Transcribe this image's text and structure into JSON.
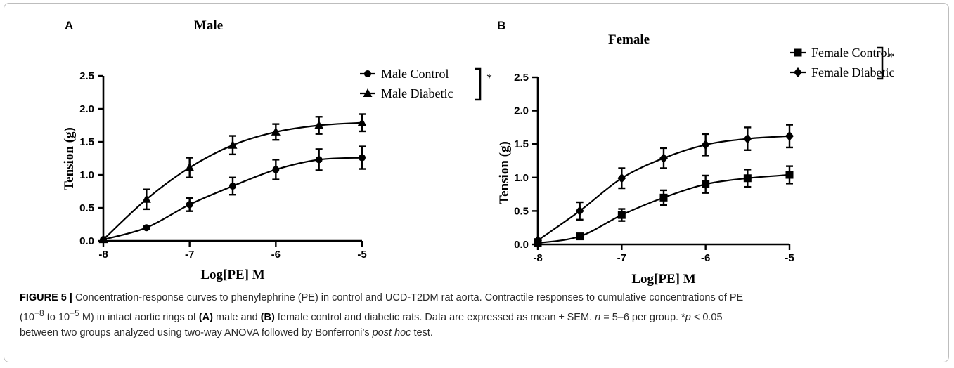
{
  "chart_data": [
    {
      "type": "line",
      "panel_letter": "A",
      "title": "Male",
      "xlabel": "Log[PE] M",
      "ylabel": "Tension (g)",
      "xlim": [
        -8,
        -5
      ],
      "ylim": [
        0,
        2.5
      ],
      "x_ticks": [
        "-8",
        "-7",
        "-6",
        "-5"
      ],
      "x_tick_values": [
        -8,
        -7,
        -6,
        -5
      ],
      "y_ticks": [
        "0.0",
        "0.5",
        "1.0",
        "1.5",
        "2.0",
        "2.5"
      ],
      "y_tick_values": [
        0,
        0.5,
        1.0,
        1.5,
        2.0,
        2.5
      ],
      "legend_position": "top-right",
      "significance_mark": "*",
      "x": [
        -8,
        -7.5,
        -7,
        -6.5,
        -6,
        -5.5,
        -5
      ],
      "series": [
        {
          "name": "Male Control",
          "marker": "circle",
          "values": [
            0.02,
            0.2,
            0.55,
            0.83,
            1.08,
            1.23,
            1.26
          ],
          "sem": [
            0.0,
            0.02,
            0.1,
            0.13,
            0.15,
            0.16,
            0.17
          ]
        },
        {
          "name": "Male Diabetic",
          "marker": "triangle",
          "values": [
            0.02,
            0.63,
            1.11,
            1.45,
            1.65,
            1.75,
            1.79
          ],
          "sem": [
            0.0,
            0.15,
            0.15,
            0.14,
            0.12,
            0.13,
            0.13
          ]
        }
      ]
    },
    {
      "type": "line",
      "panel_letter": "B",
      "title": "Female",
      "xlabel": "Log[PE] M",
      "ylabel": "Tension (g)",
      "xlim": [
        -8,
        -5
      ],
      "ylim": [
        0,
        2.5
      ],
      "x_ticks": [
        "-8",
        "-7",
        "-6",
        "-5"
      ],
      "x_tick_values": [
        -8,
        -7,
        -6,
        -5
      ],
      "y_ticks": [
        "0.0",
        "0.5",
        "1.0",
        "1.5",
        "2.0",
        "2.5"
      ],
      "y_tick_values": [
        0,
        0.5,
        1.0,
        1.5,
        2.0,
        2.5
      ],
      "legend_position": "top-right",
      "significance_mark": "*",
      "x": [
        -8,
        -7.5,
        -7,
        -6.5,
        -6,
        -5.5,
        -5
      ],
      "series": [
        {
          "name": "Female Control",
          "marker": "square",
          "values": [
            0.02,
            0.12,
            0.44,
            0.7,
            0.9,
            0.99,
            1.04
          ],
          "sem": [
            0.0,
            0.02,
            0.09,
            0.11,
            0.13,
            0.13,
            0.13
          ]
        },
        {
          "name": "Female Diabetic",
          "marker": "diamond",
          "values": [
            0.06,
            0.5,
            0.99,
            1.29,
            1.49,
            1.58,
            1.62
          ],
          "sem": [
            0.02,
            0.13,
            0.15,
            0.15,
            0.16,
            0.17,
            0.17
          ]
        }
      ]
    }
  ],
  "caption": {
    "figure_label": "FIGURE 5 |",
    "line1": " Concentration-response curves to phenylephrine (PE) in control and UCD-T2DM rat aorta. Contractile responses to cumulative concentrations of PE",
    "range_start": "(10",
    "exp1": "−8",
    "range_mid": " to 10",
    "exp2": "−5",
    "range_end": " M) in intact aortic rings of ",
    "label_a": "(A)",
    "male_text": " male and ",
    "label_b": "(B)",
    "female_text": " female control and diabetic rats. Data are expressed as mean ± SEM. ",
    "n_var": "n",
    "n_text": " = 5–6 per group. *",
    "p_var": "p",
    "p_text": " < 0.05",
    "line3": "between two groups analyzed using two-way ANOVA followed by Bonferroni’s ",
    "posthoc": "post hoc",
    "line3_end": " test."
  }
}
